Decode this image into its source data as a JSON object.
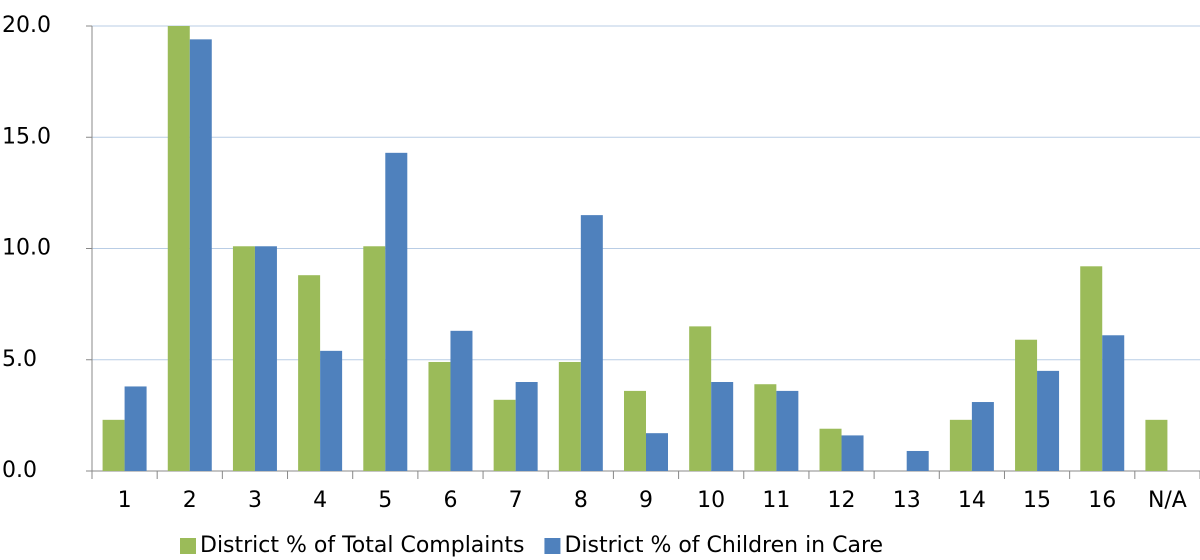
{
  "chart_data": {
    "type": "bar",
    "categories": [
      "1",
      "2",
      "3",
      "4",
      "5",
      "6",
      "7",
      "8",
      "9",
      "10",
      "11",
      "12",
      "13",
      "14",
      "15",
      "16",
      "N/A"
    ],
    "series": [
      {
        "name": "District % of Total Complaints",
        "color": "#9bbb59",
        "values": [
          2.3,
          20.0,
          10.1,
          8.8,
          10.1,
          4.9,
          3.2,
          4.9,
          3.6,
          6.5,
          3.9,
          1.9,
          null,
          2.3,
          5.9,
          9.2,
          2.3
        ]
      },
      {
        "name": "District % of Children in Care",
        "color": "#4f81bd",
        "values": [
          3.8,
          19.4,
          10.1,
          5.4,
          14.3,
          6.3,
          4.0,
          11.5,
          1.7,
          4.0,
          3.6,
          1.6,
          0.9,
          3.1,
          4.5,
          6.1,
          null
        ]
      }
    ],
    "ylim": [
      0,
      20
    ],
    "yticks": [
      {
        "value": 0,
        "label": "0.0"
      },
      {
        "value": 5,
        "label": "5.0"
      },
      {
        "value": 10,
        "label": "10.0"
      },
      {
        "value": 15,
        "label": "15.0"
      },
      {
        "value": 20,
        "label": "20.0"
      }
    ],
    "grid": true,
    "legend": "bottom"
  }
}
